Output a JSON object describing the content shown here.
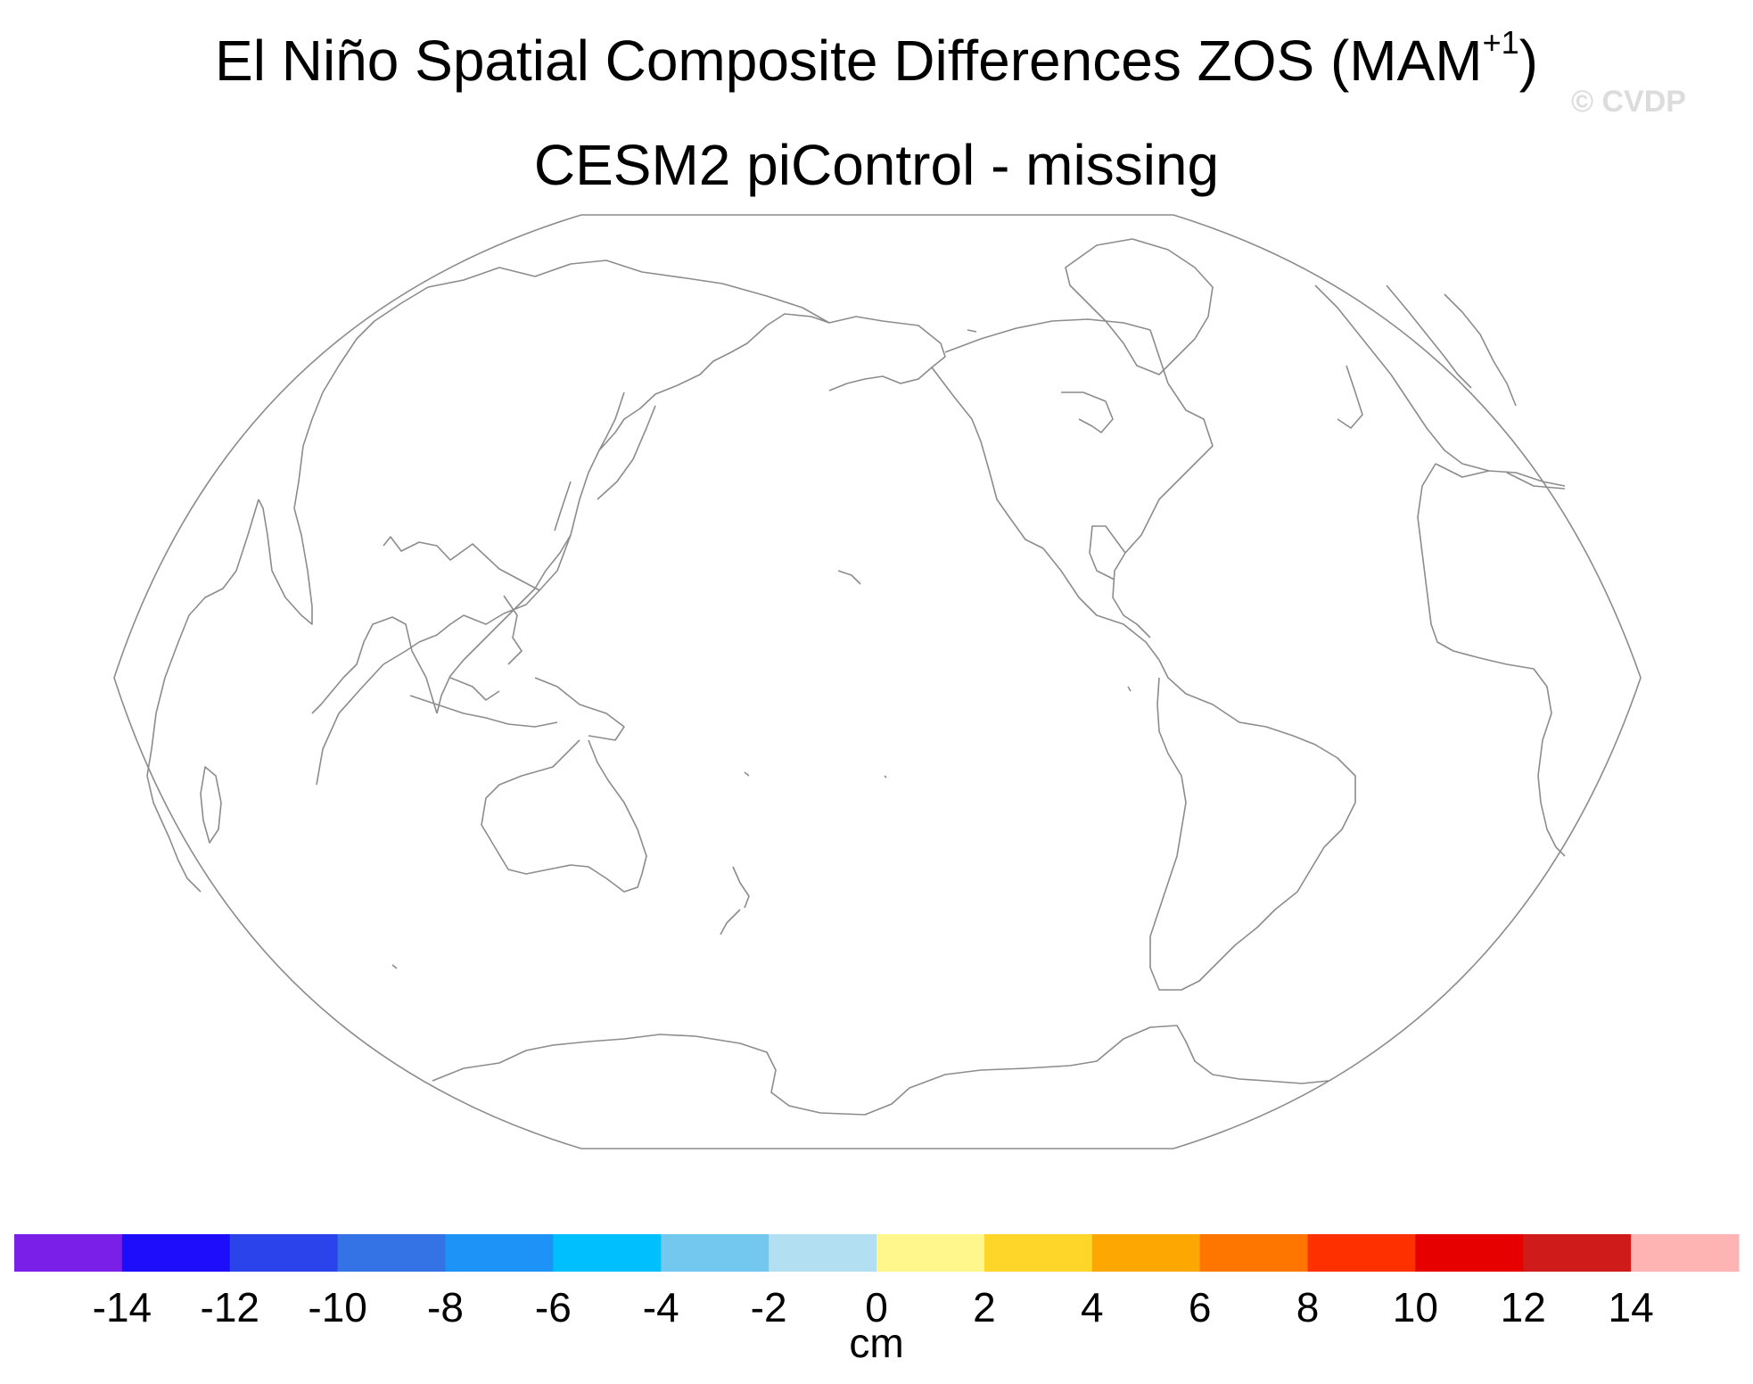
{
  "title": {
    "main": "El Niño Spatial Composite Differences ZOS (MAM",
    "superscript": "+1",
    "close": ")"
  },
  "subtitle": "CESM2 piControl - missing",
  "watermark": "© CVDP",
  "chart_data": {
    "type": "map",
    "projection": "robinson",
    "center_longitude": 180,
    "variable": "ZOS",
    "field_values": "missing (no data plotted)",
    "colorbar": {
      "units": "cm",
      "tick_labels": [
        "-14",
        "-12",
        "-10",
        "-8",
        "-6",
        "-4",
        "-2",
        "0",
        "2",
        "4",
        "6",
        "8",
        "10",
        "12",
        "14"
      ],
      "levels": [
        -14,
        -12,
        -10,
        -8,
        -6,
        -4,
        -2,
        0,
        2,
        4,
        6,
        8,
        10,
        12,
        14
      ],
      "colors": [
        "#7a1fe8",
        "#1d0dfa",
        "#2b43ea",
        "#3473e6",
        "#1d93f7",
        "#00bfff",
        "#73c8f0",
        "#b2e0f2",
        "#fff68c",
        "#fed62a",
        "#fda702",
        "#fe7600",
        "#fe3000",
        "#e60000",
        "#d01b1b",
        "#ffb4b4"
      ]
    },
    "coastline_color": "#8c8c8c"
  }
}
